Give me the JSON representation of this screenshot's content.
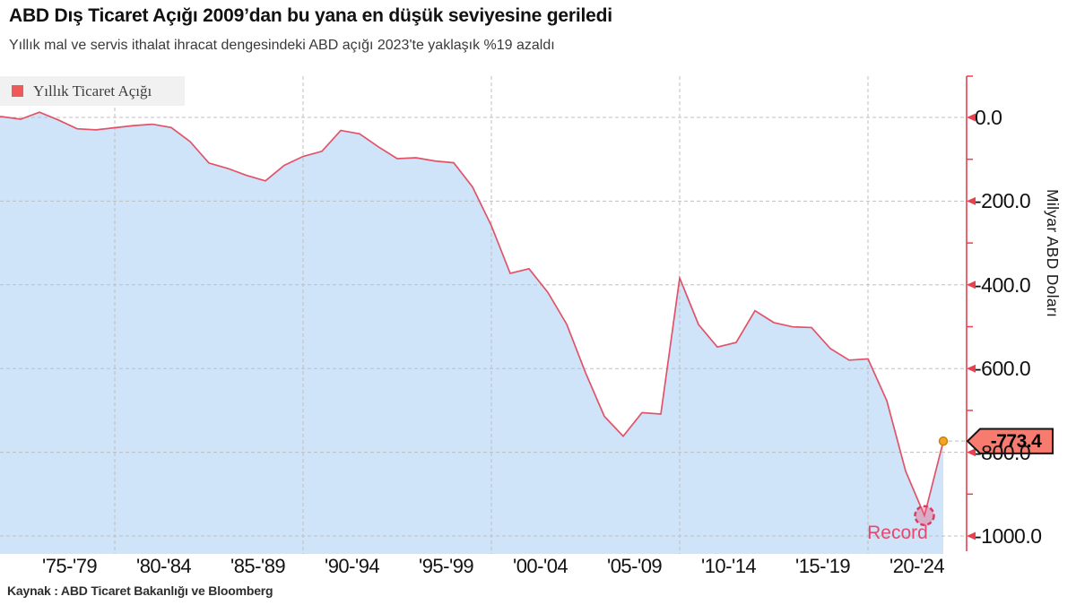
{
  "header": {
    "title": "ABD Dış Ticaret Açığı 2009’dan bu yana en düşük seviyesine geriledi",
    "subtitle": "Yıllık mal ve servis ithalat ihracat dengesindeki ABD açığı 2023'te yaklaşık %19 azaldı"
  },
  "legend": {
    "label": "Yıllık Ticaret Açığı",
    "swatch_color": "#ee5a5a"
  },
  "source": "Kaynak : ABD Ticaret Bakanlığı ve Bloomberg",
  "chart_data": {
    "type": "area",
    "title": "ABD Dış Ticaret Açığı 2009’dan bu yana en düşük seviyesine geriledi",
    "subtitle": "Yıllık mal ve servis ithalat ihracat dengesindeki ABD açığı 2023'te yaklaşık %19 azaldı",
    "series_name": "Yıllık Ticaret Açığı",
    "ylabel": "Milyar ABD Doları",
    "xlabel": "",
    "grid": true,
    "legend_position": "top-left",
    "ylim": [
      -1043,
      98
    ],
    "x": [
      1973,
      1974,
      1975,
      1976,
      1977,
      1978,
      1979,
      1980,
      1981,
      1982,
      1983,
      1984,
      1985,
      1986,
      1987,
      1988,
      1989,
      1990,
      1991,
      1992,
      1993,
      1994,
      1995,
      1996,
      1997,
      1998,
      1999,
      2000,
      2001,
      2002,
      2003,
      2004,
      2005,
      2006,
      2007,
      2008,
      2009,
      2010,
      2011,
      2012,
      2013,
      2014,
      2015,
      2016,
      2017,
      2018,
      2019,
      2020,
      2021,
      2022,
      2023
    ],
    "values": [
      1.9,
      -4.3,
      12.4,
      -6.1,
      -27.2,
      -29.8,
      -24.6,
      -19.4,
      -16.2,
      -24.2,
      -57.8,
      -109.1,
      -121.9,
      -138.5,
      -151.7,
      -114.6,
      -93.1,
      -80.9,
      -31.1,
      -39.2,
      -70.3,
      -98.5,
      -96.4,
      -104.1,
      -108.3,
      -166.1,
      -258.6,
      -372.5,
      -361.5,
      -418.0,
      -493.9,
      -609.9,
      -714.2,
      -761.7,
      -705.4,
      -708.7,
      -383.8,
      -494.7,
      -548.6,
      -537.6,
      -461.9,
      -490.2,
      -500.4,
      -502.0,
      -552.3,
      -579.9,
      -576.9,
      -676.7,
      -845.0,
      -951.2,
      -773.4
    ],
    "yticks": [
      0,
      -200,
      -400,
      -600,
      -800,
      -1000
    ],
    "ytick_labels": [
      "0.0",
      "-200.0",
      "-400.0",
      "-600.0",
      "-800.0",
      "-1000.0"
    ],
    "minor_yticks": [
      -100,
      -300,
      -500,
      -700,
      -900
    ],
    "xtick_labels": [
      "'75-'79",
      "'80-'84",
      "'85-'89",
      "'90-'94",
      "'95-'99",
      "'00-'04",
      "'05-'09",
      "'10-'14",
      "'15-'19",
      "'20-'24"
    ],
    "grid_years": [
      1979,
      1989,
      1999,
      2009,
      2019
    ],
    "annotations": {
      "last_value_label": "-773.4",
      "last_point": {
        "year": 2023,
        "value": -773.4
      },
      "record": {
        "label": "Record",
        "year": 2022,
        "value": -951.2
      }
    },
    "colors": {
      "line": "#e15368",
      "area": "#cfe3f9",
      "axis": "#e8404f",
      "grid": "#bfbfbf",
      "callout_fill": "#f87b70",
      "callout_border": "#141414",
      "marker_fill": "#f3a71f",
      "marker_border": "#c98010",
      "record_stroke": "#d63c64",
      "record_fill": "rgba(233,93,125,0.4)",
      "record_text": "#e7486d",
      "legend_swatch": "#ee5a5a"
    }
  }
}
